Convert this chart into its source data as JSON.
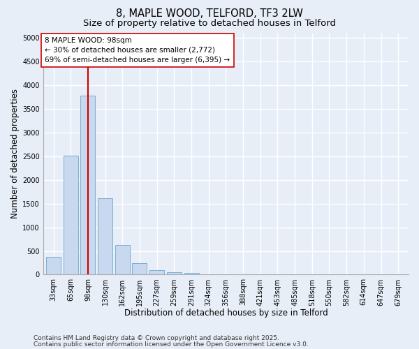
{
  "title_line1": "8, MAPLE WOOD, TELFORD, TF3 2LW",
  "title_line2": "Size of property relative to detached houses in Telford",
  "xlabel": "Distribution of detached houses by size in Telford",
  "ylabel": "Number of detached properties",
  "categories": [
    "33sqm",
    "65sqm",
    "98sqm",
    "130sqm",
    "162sqm",
    "195sqm",
    "227sqm",
    "259sqm",
    "291sqm",
    "324sqm",
    "356sqm",
    "388sqm",
    "421sqm",
    "453sqm",
    "485sqm",
    "518sqm",
    "550sqm",
    "582sqm",
    "614sqm",
    "647sqm",
    "679sqm"
  ],
  "values": [
    380,
    2520,
    3780,
    1620,
    630,
    240,
    100,
    45,
    30,
    0,
    0,
    0,
    0,
    0,
    0,
    0,
    0,
    0,
    0,
    0,
    0
  ],
  "bar_color": "#c8d8ee",
  "bar_edge_color": "#7aafd4",
  "vline_x": 2,
  "vline_color": "#cc0000",
  "annotation_text": "8 MAPLE WOOD: 98sqm\n← 30% of detached houses are smaller (2,772)\n69% of semi-detached houses are larger (6,395) →",
  "annotation_box_color": "#ffffff",
  "annotation_box_edge": "#cc0000",
  "ylim": [
    0,
    5100
  ],
  "yticks": [
    0,
    500,
    1000,
    1500,
    2000,
    2500,
    3000,
    3500,
    4000,
    4500,
    5000
  ],
  "footer_line1": "Contains HM Land Registry data © Crown copyright and database right 2025.",
  "footer_line2": "Contains public sector information licensed under the Open Government Licence v3.0.",
  "bg_color": "#e8eef8",
  "plot_bg_color": "#e8eef8",
  "grid_color": "#ffffff",
  "title_fontsize": 10.5,
  "subtitle_fontsize": 9.5,
  "label_fontsize": 8.5,
  "tick_fontsize": 7,
  "annot_fontsize": 7.5,
  "footer_fontsize": 6.5
}
